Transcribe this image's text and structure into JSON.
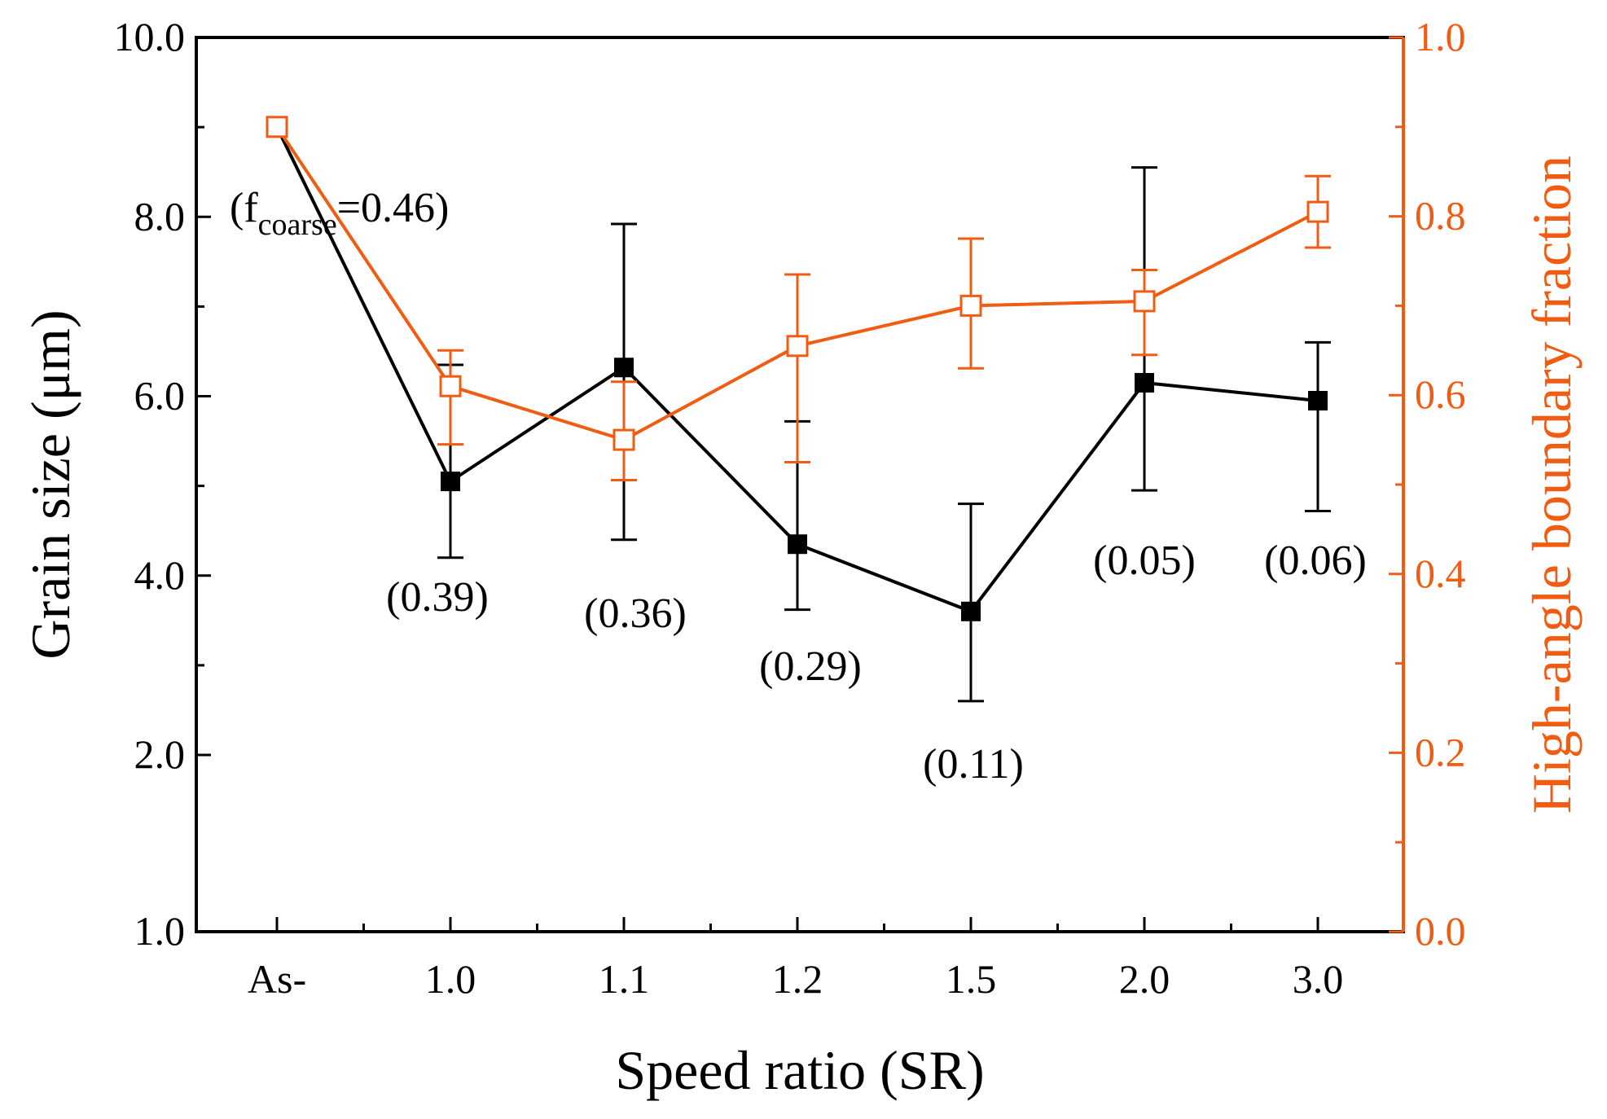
{
  "chart_data": {
    "type": "line",
    "categories": [
      "As-",
      "1.0",
      "1.1",
      "1.2",
      "1.5",
      "2.0",
      "3.0"
    ],
    "xlabel": "Speed ratio (SR)",
    "ylabel_left": "Grain size (μm)",
    "ylabel_right": "High-angle boundary fraction",
    "ylim_left": [
      1.0,
      10.0
    ],
    "ylim_right": [
      0.0,
      1.0
    ],
    "left_ticks": [
      "1.0",
      "2.0",
      "4.0",
      "6.0",
      "8.0",
      "10.0"
    ],
    "right_ticks": [
      "0.0",
      "0.2",
      "0.4",
      "0.6",
      "0.8",
      "1.0"
    ],
    "colors": {
      "left": "#000000",
      "right": "#f25c12"
    },
    "series": [
      {
        "axis": "left",
        "marker": "filled-square",
        "values": [
          9.0,
          5.05,
          6.32,
          4.35,
          3.6,
          6.15,
          5.95
        ],
        "err_low": [
          null,
          4.2,
          4.4,
          3.62,
          2.6,
          4.95,
          4.72
        ],
        "err_high": [
          null,
          6.35,
          7.92,
          5.72,
          4.8,
          8.55,
          6.6
        ]
      },
      {
        "axis": "right",
        "marker": "open-square",
        "values": [
          0.9,
          0.61,
          0.55,
          0.655,
          0.7,
          0.705,
          0.805
        ],
        "err_low": [
          null,
          0.545,
          0.505,
          0.525,
          0.63,
          0.645,
          0.765
        ],
        "err_high": [
          null,
          0.65,
          0.615,
          0.735,
          0.775,
          0.74,
          0.845
        ]
      }
    ],
    "annotations": [
      {
        "category": "As-",
        "prefix": "(f",
        "subscript": "coarse",
        "suffix": "=0.46)"
      },
      {
        "category": "1.0",
        "text": "(0.39)"
      },
      {
        "category": "1.1",
        "text": "(0.36)"
      },
      {
        "category": "1.2",
        "text": "(0.29)"
      },
      {
        "category": "1.5",
        "text": "(0.11)"
      },
      {
        "category": "2.0",
        "text": "(0.05)"
      },
      {
        "category": "3.0",
        "text": "(0.06)"
      }
    ]
  }
}
